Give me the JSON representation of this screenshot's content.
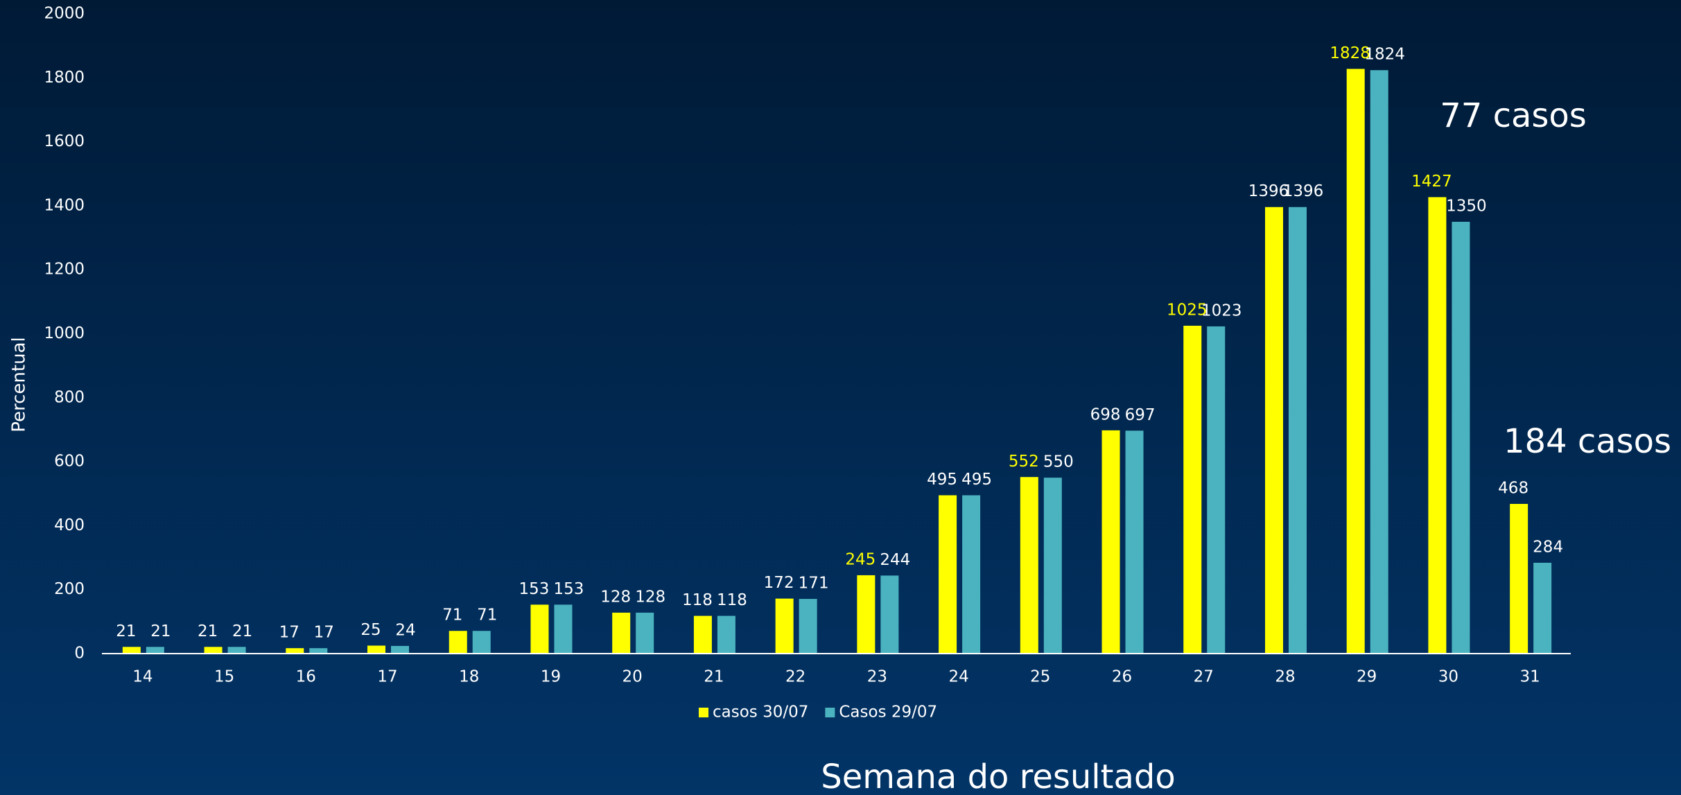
{
  "chart_data": {
    "type": "bar",
    "y_axis_label": "Percentual",
    "x_axis_label": "Semana do resultado",
    "categories": [
      "14",
      "15",
      "16",
      "17",
      "18",
      "19",
      "20",
      "21",
      "22",
      "23",
      "24",
      "25",
      "26",
      "27",
      "28",
      "29",
      "30",
      "31"
    ],
    "series": [
      {
        "name": "casos 30/07",
        "color": "#ffff00",
        "values": [
          21,
          21,
          17,
          25,
          71,
          153,
          128,
          118,
          172,
          245,
          495,
          552,
          698,
          1025,
          1396,
          1828,
          1427,
          468
        ],
        "label_colors": [
          "#ffffff",
          "#ffffff",
          "#ffffff",
          "#ffffff",
          "#ffffff",
          "#ffffff",
          "#ffffff",
          "#ffffff",
          "#ffffff",
          "#ffff00",
          "#ffffff",
          "#ffff00",
          "#ffffff",
          "#ffff00",
          "#ffffff",
          "#ffff00",
          "#ffff00",
          "#ffffff"
        ]
      },
      {
        "name": "Casos 29/07",
        "color": "#4bb3bf",
        "values": [
          21,
          21,
          17,
          24,
          71,
          153,
          128,
          118,
          171,
          244,
          495,
          550,
          697,
          1023,
          1396,
          1824,
          1350,
          284
        ]
      }
    ],
    "ylim": [
      0,
      2000
    ],
    "yticks": [
      0,
      200,
      400,
      600,
      800,
      1000,
      1200,
      1400,
      1600,
      1800,
      2000
    ],
    "annotations": [
      "77 casos",
      "184 casos"
    ],
    "legend": "bottom"
  }
}
